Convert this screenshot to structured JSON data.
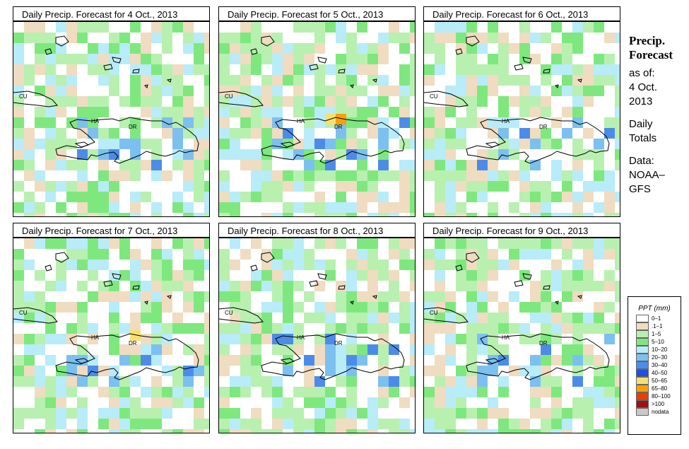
{
  "panels": [
    {
      "title": "Daily Precip. Forecast for  4 Oct., 2013",
      "seed": 11,
      "labels": {
        "cu": "CU",
        "ha": "HA",
        "dr": "DR"
      }
    },
    {
      "title": "Daily Precip. Forecast for  5 Oct., 2013",
      "seed": 23,
      "labels": {
        "cu": "CU",
        "ha": "HA",
        "dr": "DR"
      }
    },
    {
      "title": "Daily Precip. Forecast for  6 Oct., 2013",
      "seed": 37,
      "labels": {
        "cu": "CU",
        "ha": "HA",
        "dr": "DR"
      }
    },
    {
      "title": "Daily Precip. Forecast for  7 Oct., 2013",
      "seed": 41,
      "labels": {
        "cu": "CU",
        "ha": "HA",
        "dr": "DR"
      }
    },
    {
      "title": "Daily Precip. Forecast for  8 Oct., 2013",
      "seed": 53,
      "labels": {
        "cu": "CU",
        "ha": "HA",
        "dr": "DR"
      }
    },
    {
      "title": "Daily Precip. Forecast for  9 Oct., 2013",
      "seed": 67,
      "labels": {
        "cu": "CU",
        "ha": "HA",
        "dr": "DR"
      }
    }
  ],
  "side": {
    "heading1": "Precip.",
    "heading2": "Forecast",
    "asof1": "as of:",
    "asof2": "4 Oct.",
    "asof3": "2013",
    "daily1": "Daily",
    "daily2": "Totals",
    "data1": "Data:",
    "data2": "NOAA–",
    "data3": "GFS"
  },
  "legend": {
    "title": "PPT (mm)",
    "items": [
      {
        "label": "0–1",
        "color": "#ffffff"
      },
      {
        "label": ".1–1",
        "color": "#f0dcc0"
      },
      {
        "label": "1–5",
        "color": "#b8f0b0"
      },
      {
        "label": "5–10",
        "color": "#7ee87e"
      },
      {
        "label": "10–20",
        "color": "#b8ecf8"
      },
      {
        "label": "20–30",
        "color": "#7cc0f0"
      },
      {
        "label": "30–40",
        "color": "#4c8ce8"
      },
      {
        "label": "40–50",
        "color": "#2050e0"
      },
      {
        "label": "50–65",
        "color": "#f8e070"
      },
      {
        "label": "65–80",
        "color": "#f8a000"
      },
      {
        "label": "80–100",
        "color": "#e84000"
      },
      {
        "label": ">100",
        "color": "#a01010"
      },
      {
        "label": "nodata",
        "color": "#c8c8c8"
      }
    ]
  }
}
